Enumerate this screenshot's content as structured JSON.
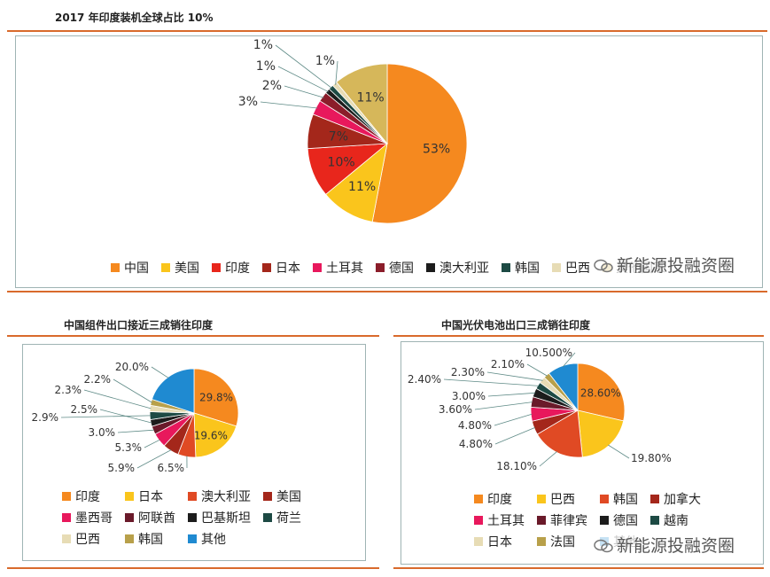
{
  "chart_data": [
    {
      "type": "pie",
      "title": "2017 年印度装机全球占比 10%",
      "labels": [
        "中国",
        "美国",
        "印度",
        "日本",
        "土耳其",
        "德国",
        "澳大利亚",
        "韩国",
        "巴西",
        "其他国家"
      ],
      "values": [
        53,
        11,
        10,
        7,
        3,
        2,
        1,
        1,
        1,
        11
      ],
      "data_labels": [
        "53%",
        "11%",
        "10%",
        "7%",
        "3%",
        "2%",
        "1%",
        "1%",
        "1%",
        "11%"
      ],
      "colors": [
        "#f5891f",
        "#fac51c",
        "#e8261c",
        "#a4271b",
        "#e8185c",
        "#8b1d2a",
        "#1c1c1c",
        "#1d4a44",
        "#e7dcb5",
        "#d6b75a"
      ],
      "legend_position": "bottom",
      "legend": [
        "中国",
        "美国",
        "印度",
        "日本",
        "土耳其",
        "德国",
        "澳大利亚",
        "韩国",
        "巴西",
        "其他国家"
      ]
    },
    {
      "type": "pie",
      "title": "中国组件出口接近三成销往印度",
      "labels": [
        "印度",
        "日本",
        "澳大利亚",
        "美国",
        "墨西哥",
        "阿联酋",
        "巴基斯坦",
        "荷兰",
        "巴西",
        "韩国",
        "其他"
      ],
      "values": [
        29.8,
        19.6,
        6.5,
        5.9,
        5.3,
        3.0,
        2.5,
        2.9,
        2.3,
        2.2,
        20.0
      ],
      "data_labels": [
        "29.8%",
        "19.6%",
        "6.5%",
        "5.9%",
        "5.3%",
        "3.0%",
        "2.5%",
        "2.9%",
        "2.3%",
        "2.2%",
        "20.0%"
      ],
      "colors": [
        "#f5891f",
        "#fac51c",
        "#e04a24",
        "#a4271b",
        "#e8185c",
        "#6a1a2a",
        "#1c1c1c",
        "#1d4a44",
        "#e7dcb5",
        "#b8a04a",
        "#1f8ad1"
      ],
      "legend_position": "bottom",
      "legend": [
        "印度",
        "日本",
        "澳大利亚",
        "美国",
        "墨西哥",
        "阿联酋",
        "巴基斯坦",
        "荷兰",
        "巴西",
        "韩国",
        "其他"
      ]
    },
    {
      "type": "pie",
      "title": "中国光伏电池出口三成销往印度",
      "labels": [
        "印度",
        "巴西",
        "韩国",
        "加拿大",
        "土耳其",
        "菲律宾",
        "德国",
        "越南",
        "日本",
        "法国",
        "其他"
      ],
      "values": [
        28.6,
        19.8,
        18.1,
        4.8,
        4.8,
        3.6,
        3.0,
        2.4,
        2.3,
        2.1,
        10.5
      ],
      "data_labels": [
        "28.60%",
        "19.80%",
        "18.10%",
        "4.80%",
        "4.80%",
        "3.60%",
        "3.00%",
        "2.40%",
        "2.30%",
        "2.10%",
        "10.500%"
      ],
      "colors": [
        "#f5891f",
        "#fac51c",
        "#e04a24",
        "#a4271b",
        "#e8185c",
        "#6a1a2a",
        "#1c1c1c",
        "#1d4a44",
        "#e7dcb5",
        "#b8a04a",
        "#1f8ad1"
      ],
      "legend_position": "bottom",
      "legend": [
        "印度",
        "巴西",
        "韩国",
        "加拿大",
        "土耳其",
        "菲律宾",
        "德国",
        "越南",
        "日本",
        "法国",
        "其他"
      ]
    }
  ],
  "watermark": "新能源投融资圈"
}
